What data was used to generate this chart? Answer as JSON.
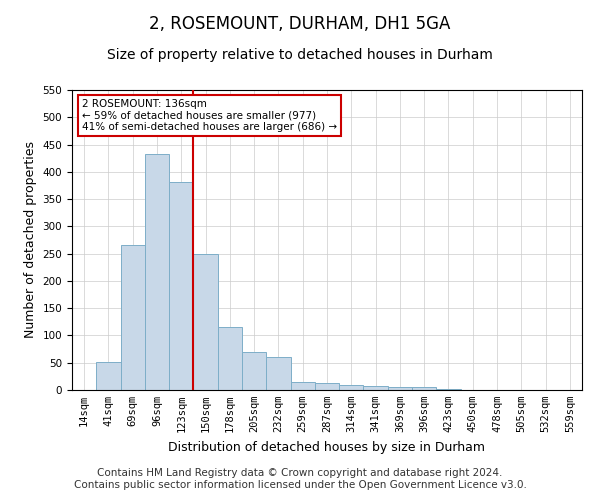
{
  "title": "2, ROSEMOUNT, DURHAM, DH1 5GA",
  "subtitle": "Size of property relative to detached houses in Durham",
  "xlabel": "Distribution of detached houses by size in Durham",
  "ylabel": "Number of detached properties",
  "categories": [
    "14sqm",
    "41sqm",
    "69sqm",
    "96sqm",
    "123sqm",
    "150sqm",
    "178sqm",
    "205sqm",
    "232sqm",
    "259sqm",
    "287sqm",
    "314sqm",
    "341sqm",
    "369sqm",
    "396sqm",
    "423sqm",
    "450sqm",
    "478sqm",
    "505sqm",
    "532sqm",
    "559sqm"
  ],
  "values": [
    0,
    52,
    265,
    433,
    382,
    250,
    115,
    70,
    60,
    15,
    13,
    10,
    8,
    6,
    5,
    2,
    0,
    0,
    0,
    0,
    0
  ],
  "bar_color": "#c8d8e8",
  "bar_edge_color": "#7daec8",
  "ylim": [
    0,
    550
  ],
  "yticks": [
    0,
    50,
    100,
    150,
    200,
    250,
    300,
    350,
    400,
    450,
    500,
    550
  ],
  "red_line_x": 4.5,
  "annotation_line1": "2 ROSEMOUNT: 136sqm",
  "annotation_line2": "← 59% of detached houses are smaller (977)",
  "annotation_line3": "41% of semi-detached houses are larger (686) →",
  "annotation_box_color": "#ffffff",
  "annotation_box_edge": "#cc0000",
  "footer_line1": "Contains HM Land Registry data © Crown copyright and database right 2024.",
  "footer_line2": "Contains public sector information licensed under the Open Government Licence v3.0.",
  "background_color": "#ffffff",
  "grid_color": "#cccccc",
  "title_fontsize": 12,
  "subtitle_fontsize": 10,
  "tick_fontsize": 7.5,
  "ylabel_fontsize": 9,
  "xlabel_fontsize": 9,
  "footer_fontsize": 7.5
}
